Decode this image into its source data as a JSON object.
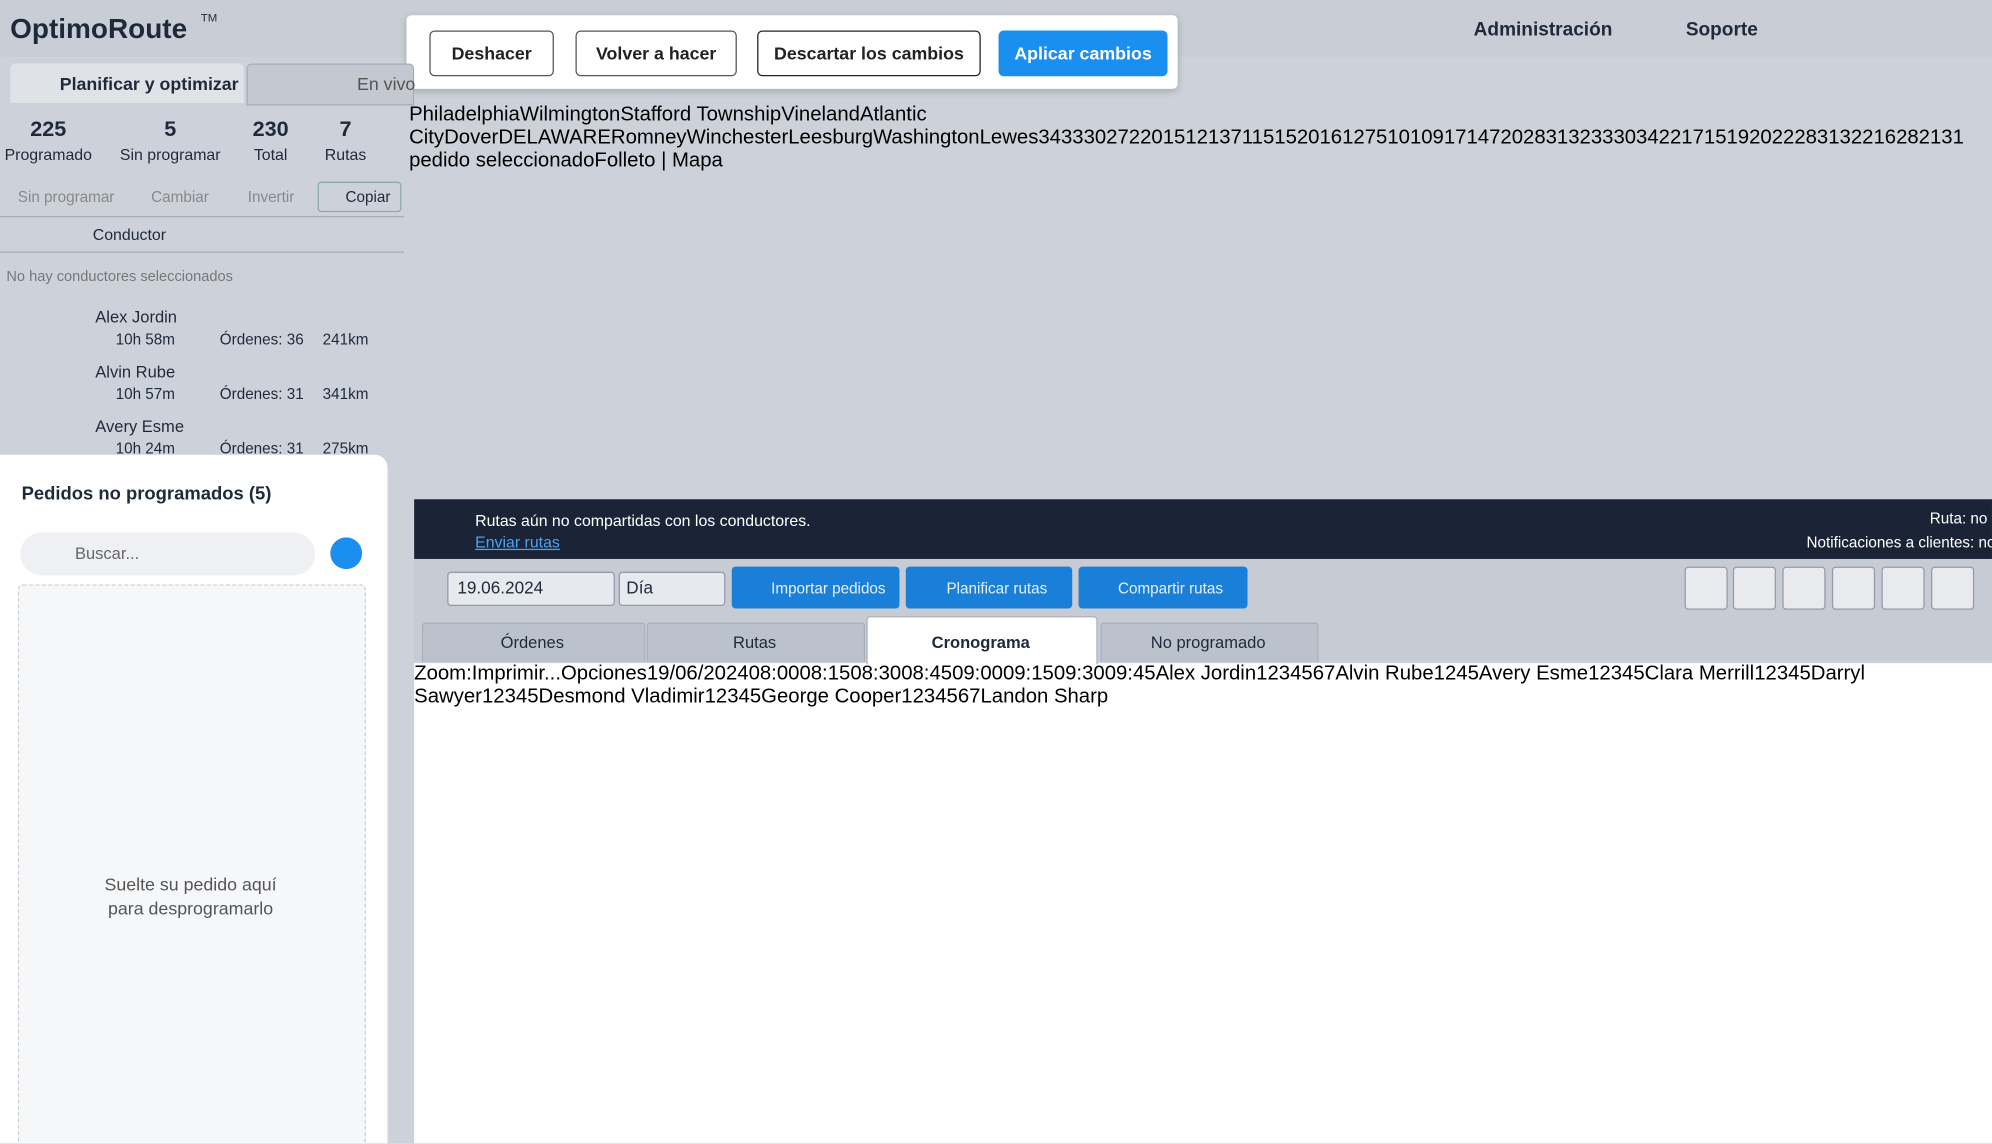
{
  "header": {
    "logo": "OptimoRoute",
    "tm": "TM",
    "actions": [
      "Deshacer",
      "Volver a hacer",
      "Descartar los cambios",
      "Aplicar cambios"
    ],
    "nav": [
      "Administración",
      "Soporte"
    ]
  },
  "tabs": [
    "Planificar y optimizar",
    "En vivo"
  ],
  "stats": [
    {
      "value": 225,
      "label": "Programado"
    },
    {
      "value": 5,
      "label": "Sin programar"
    },
    {
      "value": 230,
      "label": "Total"
    },
    {
      "value": 7,
      "label": "Rutas"
    }
  ],
  "toolbar": [
    "Sin programar",
    "Cambiar",
    "Invertir",
    "Copiar"
  ],
  "driver_header": "Conductor",
  "no_drivers": "No hay conductores seleccionados",
  "drivers": [
    {
      "name": "Alex Jordin",
      "time": "10h 58m",
      "orders": "Órdenes: 36",
      "distance": "241km",
      "color": "#3a9e1f"
    },
    {
      "name": "Alvin Rube",
      "time": "10h 57m",
      "orders": "Órdenes: 31",
      "distance": "341km",
      "color": "#1a8fe0"
    },
    {
      "name": "Avery Esme",
      "time": "10h 24m",
      "orders": "Órdenes: 31",
      "distance": "275km",
      "color": "#c94a8c"
    }
  ],
  "unscheduled": {
    "title": "Pedidos no programados (5)",
    "search": "Buscar...",
    "drop": [
      "Suelte su pedido aquí",
      "para desprogramarlo"
    ]
  },
  "map": {
    "places": [
      "Philadelphia",
      "Wilmington",
      "Stafford Township",
      "Vineland",
      "Atlantic City",
      "Dover",
      "DELAWARE",
      "Romney",
      "Winchester",
      "Leesburg",
      "Washington",
      "Lewes"
    ],
    "pins": [
      {
        "label": "34",
        "color": "#f5a00f"
      },
      {
        "label": "33",
        "color": "#f5a00f"
      },
      {
        "label": "30",
        "color": "#f5a00f"
      },
      {
        "label": "27",
        "color": "#f5a00f"
      },
      {
        "label": "2",
        "color": "#f5a00f"
      },
      {
        "label": "20",
        "color": "#f5a00f"
      },
      {
        "label": "15",
        "color": "#f5a00f"
      },
      {
        "label": "12",
        "color": "#f5a00f"
      },
      {
        "label": "13",
        "color": "#6a2ee0"
      },
      {
        "label": "7",
        "color": "#6a2ee0"
      },
      {
        "label": "11",
        "color": "#6a2ee0"
      },
      {
        "label": "5",
        "color": "#6a2ee0"
      },
      {
        "label": "15",
        "color": "#6a2ee0"
      },
      {
        "label": "20",
        "color": "#1a9be6"
      },
      {
        "label": "16",
        "color": "#1a9be6"
      },
      {
        "label": "12",
        "color": "#1a9be6"
      },
      {
        "label": "7",
        "color": "#1a9be6"
      },
      {
        "label": "5",
        "color": "#1a9be6"
      },
      {
        "label": "10",
        "color": "#1a9be6"
      },
      {
        "label": "10",
        "color": "#f0501e"
      },
      {
        "label": "9",
        "color": "#f0501e"
      },
      {
        "label": "17",
        "color": "#f0501e"
      },
      {
        "label": "14",
        "color": "#f0501e"
      },
      {
        "label": "7",
        "color": "#f0501e"
      },
      {
        "label": "20",
        "color": "#f0501e"
      },
      {
        "label": "28",
        "color": "#d6479a"
      },
      {
        "label": "31",
        "color": "#d6479a"
      },
      {
        "label": "32",
        "color": "#6a2ee0"
      },
      {
        "label": "33",
        "color": "#6a2ee0"
      },
      {
        "label": "30",
        "color": "#6a2ee0"
      },
      {
        "label": "34",
        "color": "#6a2ee0"
      },
      {
        "label": "22",
        "color": "#d6479a"
      },
      {
        "label": "17",
        "color": "#d6479a"
      },
      {
        "label": "15",
        "color": "#d6479a"
      },
      {
        "label": "19",
        "color": "#3a9e1f"
      },
      {
        "label": "20",
        "color": "#3a9e1f"
      },
      {
        "label": "22",
        "color": "#3a9e1f"
      },
      {
        "label": "28",
        "color": "#3a9e1f"
      },
      {
        "label": "31",
        "color": "#3a9e1f"
      },
      {
        "label": "3",
        "color": "#e8d21c"
      },
      {
        "label": "22",
        "color": "#e8d21c"
      },
      {
        "label": "16",
        "color": "#e8d21c"
      },
      {
        "label": "28",
        "color": "#f0501e"
      },
      {
        "label": "2",
        "color": "#6a2ee0"
      },
      {
        "label": "1",
        "color": "#d6479a"
      },
      {
        "label": "3",
        "color": "#ffffff"
      }
    ],
    "selection": "1 pedido seleccionado",
    "attribution": "Folleto | Mapa"
  },
  "banner": {
    "text": "Rutas aún no compartidas con los conductores.",
    "link": "Enviar rutas",
    "status": [
      "Ruta: no",
      "Notificaciones a clientes: no"
    ]
  },
  "controls": {
    "date": "19.06.2024",
    "view": "Día",
    "buttons": [
      "Importar pedidos",
      "Planificar rutas",
      "Compartir rutas"
    ]
  },
  "subtabs": [
    "Órdenes",
    "Rutas",
    "Cronograma",
    "No programado"
  ],
  "timeline": {
    "zoom": "Zoom:",
    "print": "Imprimir...",
    "options": "Opciones",
    "date": "19/06/2024",
    "times": [
      "08:00",
      "08:15",
      "08:30",
      "08:45",
      "09:00",
      "09:15",
      "09:30",
      "09:45"
    ],
    "rows": [
      {
        "name": "Alex Jordin",
        "color": "#3a9e1f",
        "stops": [
          "1",
          "2",
          "3",
          "4",
          "5",
          "6",
          "7"
        ]
      },
      {
        "name": "Alvin Rube",
        "color": "#1a9be6",
        "stops": [
          "1",
          "2",
          "4",
          "5"
        ]
      },
      {
        "name": "Avery Esme",
        "color": "#d6479a",
        "stops": [
          "1",
          "2",
          "3",
          "4",
          "5"
        ]
      },
      {
        "name": "Clara Merrill",
        "color": "#f2dc1f",
        "stops": [
          "1",
          "2",
          "3",
          "4",
          "5"
        ]
      },
      {
        "name": "Darryl Sawyer",
        "color": "#6a2ee0",
        "stops": [
          "1",
          "2",
          "3",
          "4",
          "5"
        ]
      },
      {
        "name": "Desmond Vladimir",
        "color": "#f5a00f",
        "stops": [
          "1",
          "2",
          "3",
          "4",
          "5"
        ]
      },
      {
        "name": "George Cooper",
        "color": "#f0501e",
        "stops": [
          "1",
          "2",
          "3",
          "4",
          "5",
          "6",
          "7"
        ]
      },
      {
        "name": "Landon Sharp",
        "color": "#888888",
        "stops": []
      }
    ]
  }
}
